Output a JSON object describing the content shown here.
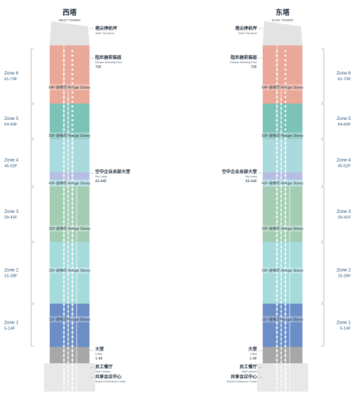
{
  "towers": [
    {
      "id": "west",
      "title_cn": "西塔",
      "title_en": "WEST TOWER",
      "annotations": {
        "apron": {
          "cn": "塔尖停机坪",
          "en": "Tower Top Apron"
        },
        "damper": {
          "cn": "阻尼器安装层",
          "en": "Damper Mounting Floor",
          "floor": "70F"
        },
        "sky_lobby": {
          "cn": "空中企业总部大堂",
          "en": "Sky Lobby",
          "floor": "43-44F"
        },
        "lobby": {
          "cn": "大堂",
          "en": "Lobby",
          "floor": "1-4F"
        },
        "canteen": {
          "cn": "员工餐厅",
          "en": "Staff Canteen"
        },
        "conference": {
          "cn": "共享会议中心",
          "en": "Shared Conference Center"
        }
      }
    },
    {
      "id": "east",
      "title_cn": "东塔",
      "title_en": "EAST TOWER",
      "annotations": {
        "apron": {
          "cn": "塔尖停机坪",
          "en": "Tower Top Apron"
        },
        "damper": {
          "cn": "阻尼器安装层",
          "en": "Damper Mounting Floor",
          "floor": "70F"
        },
        "sky_lobby": {
          "cn": "空中企业总部大堂",
          "en": "Sky Lobby",
          "floor": "43-44F"
        },
        "lobby": {
          "cn": "大堂",
          "en": "Lobby",
          "floor": "1-4F"
        },
        "canteen": {
          "cn": "员工餐厅",
          "en": "Staff Canteen"
        },
        "conference": {
          "cn": "共享会议中心",
          "en": "Shared Conference Center"
        }
      }
    }
  ],
  "zones": [
    {
      "name": "Zone 6",
      "range": "61-73F",
      "color": "#eaa898"
    },
    {
      "name": "Zone 5",
      "range": "54-60F",
      "color": "#7cc3b7"
    },
    {
      "name": "Zone 4",
      "range": "45-52F",
      "color": "#a9dadd"
    },
    {
      "name": "Zone 3",
      "range": "29-41F",
      "color": "#a3cdb3"
    },
    {
      "name": "Zone 2",
      "range": "15-28F",
      "color": "#a5dbdb"
    },
    {
      "name": "Zone 1",
      "range": "5-14F",
      "color": "#6b8ec7"
    }
  ],
  "refuge_floors": [
    {
      "floor": "64F",
      "label": "64F-避难层 Refuge Storey"
    },
    {
      "floor": "53F",
      "label": "53F-避难层 Refuge Storey"
    },
    {
      "floor": "42F",
      "label": "42F-避难层 Refuge Storey"
    },
    {
      "floor": "32F",
      "label": "32F-避难层 Refuge Storey"
    },
    {
      "floor": "22F",
      "label": "22F-避难层 Refuge Storey"
    },
    {
      "floor": "11F",
      "label": "11F-避难层 Refuge Storey"
    }
  ],
  "colors": {
    "spire": "#e3e3e3",
    "lobby": "#a7a7a7",
    "podium": "#e8e8e8",
    "sky_lobby": "#b7bde4",
    "zone6": "#eaa898",
    "zone5": "#7cc3b7",
    "zone4": "#a9dadd",
    "zone3": "#a3cdb3",
    "zone2": "#a5dbdb",
    "zone1": "#6b8ec7",
    "bracket": "#8a8a8a",
    "shaft": "#ffffff"
  }
}
